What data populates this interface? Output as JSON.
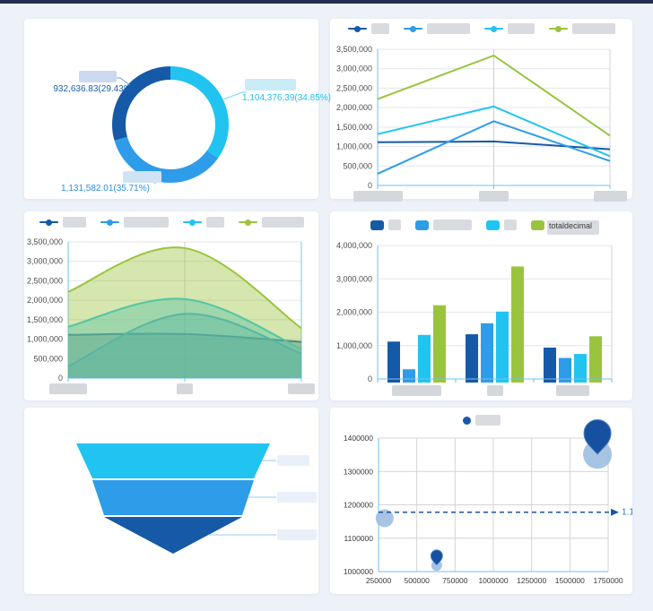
{
  "page": {
    "topbar_color": "#232d55",
    "background": "#edf1f8"
  },
  "colors": {
    "navy": "#1659a7",
    "blue": "#2e9ce8",
    "cyan": "#21c4f0",
    "green": "#9ac43e",
    "axis_blue": "#6cc1f0",
    "grid_gray": "#e4e6ea",
    "bubble": "#9fbee0",
    "pin": "#17509e"
  },
  "chart_data": [
    {
      "panel": "donut",
      "type": "pie",
      "donut": true,
      "slices": [
        {
          "display": "1,104,376.39(34.85%)",
          "value": 1104376.39,
          "pct": 34.85,
          "color": "#21c4f0",
          "label_redacted": true
        },
        {
          "display": "1,131,582.01(35.71%)",
          "value": 1131582.01,
          "pct": 35.71,
          "color": "#2e9ce8",
          "label_redacted": true
        },
        {
          "display": "932,636.83(29.43%)",
          "value": 932636.83,
          "pct": 29.43,
          "color": "#1659a7",
          "label_redacted": true
        }
      ]
    },
    {
      "panel": "line",
      "type": "line",
      "ylim": [
        0,
        3500000
      ],
      "ystep": 500000,
      "tick_format": "comma",
      "categories_redacted": 3,
      "legend_position": "top",
      "series": [
        {
          "name": "",
          "legend_redacted": true,
          "color": "#1659a7",
          "values": [
            1110000,
            1130000,
            930000
          ]
        },
        {
          "name": "",
          "legend_redacted": true,
          "color": "#2e9ce8",
          "values": [
            300000,
            1650000,
            630000
          ]
        },
        {
          "name": "",
          "legend_redacted": true,
          "color": "#21c4f0",
          "values": [
            1320000,
            2030000,
            750000
          ]
        },
        {
          "name": "",
          "legend_redacted": true,
          "color": "#9ac43e",
          "values": [
            2220000,
            3340000,
            1280000
          ]
        }
      ]
    },
    {
      "panel": "area",
      "type": "area",
      "smooth": true,
      "ylim": [
        0,
        3500000
      ],
      "ystep": 500000,
      "tick_format": "comma",
      "categories_redacted": 3,
      "legend_position": "top",
      "series": [
        {
          "name": "",
          "legend_redacted": true,
          "color": "#1659a7",
          "values": [
            1110000,
            1130000,
            930000
          ]
        },
        {
          "name": "",
          "legend_redacted": true,
          "color": "#2e9ce8",
          "values": [
            300000,
            1650000,
            630000
          ]
        },
        {
          "name": "",
          "legend_redacted": true,
          "color": "#21c4f0",
          "values": [
            1320000,
            2030000,
            750000
          ]
        },
        {
          "name": "",
          "legend_redacted": true,
          "color": "#9ac43e",
          "values": [
            2220000,
            3340000,
            1280000
          ]
        }
      ]
    },
    {
      "panel": "bar",
      "type": "bar",
      "ylim": [
        0,
        4000000
      ],
      "ystep": 1000000,
      "tick_format": "comma",
      "categories_redacted": 3,
      "legend_position": "top",
      "series": [
        {
          "name": "",
          "legend_redacted": true,
          "color": "#1659a7",
          "values": [
            1120000,
            1340000,
            940000
          ]
        },
        {
          "name": "",
          "legend_redacted": true,
          "color": "#2e9ce8",
          "values": [
            290000,
            1670000,
            630000
          ]
        },
        {
          "name": "",
          "legend_redacted": true,
          "color": "#21c4f0",
          "values": [
            1320000,
            2020000,
            750000
          ]
        },
        {
          "name": "totaldecimal",
          "legend_redacted": false,
          "color": "#9ac43e",
          "values": [
            2210000,
            3370000,
            1280000
          ]
        }
      ]
    },
    {
      "panel": "funnel",
      "type": "funnel",
      "steps": [
        {
          "color": "#21c4f0",
          "label_redacted": true
        },
        {
          "color": "#2e9ce8",
          "label_redacted": true
        },
        {
          "color": "#1659a7",
          "label_redacted": true
        }
      ]
    },
    {
      "panel": "scatter",
      "type": "scatter",
      "xlim": [
        250000,
        1750000
      ],
      "xstep": 250000,
      "ylim": [
        1000000,
        1400000
      ],
      "ystep": 100000,
      "tick_format": "plain",
      "legend": [
        {
          "name": "",
          "legend_redacted": true,
          "color": "#1659a7"
        }
      ],
      "bubbles": [
        {
          "x": 290000,
          "y": 1160000,
          "r": 10
        },
        {
          "x": 630000,
          "y": 1018000,
          "r": 6
        },
        {
          "x": 1680000,
          "y": 1351000,
          "r": 16
        }
      ],
      "pins": [
        {
          "x": 630000,
          "y": 1020000,
          "size": 13
        },
        {
          "x": 1680000,
          "y": 1352000,
          "size": 30
        }
      ],
      "markline": {
        "y": 1178000,
        "label": "1.1"
      }
    }
  ]
}
